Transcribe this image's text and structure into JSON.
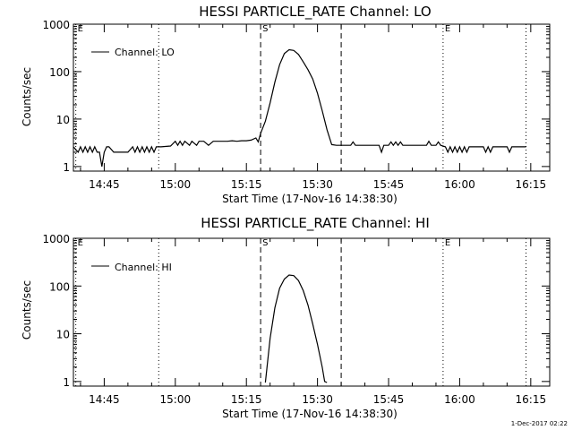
{
  "footer_date": "1-Dec-2017 02:22",
  "chart_data": [
    {
      "type": "line",
      "title": "HESSI PARTICLE_RATE Channel: LO",
      "xlabel": "Start Time (17-Nov-16 14:38:30)",
      "ylabel": "Counts/sec",
      "yscale": "log",
      "xlim": [
        "14:38:30",
        "16:19:00"
      ],
      "ylim": [
        0.8,
        1000
      ],
      "xticks": [
        "14:45",
        "15:00",
        "15:15",
        "15:30",
        "15:45",
        "16:00",
        "16:15"
      ],
      "yticks": [
        1,
        10,
        100,
        1000
      ],
      "ytick_labels": [
        "1",
        "10",
        "100",
        "1000"
      ],
      "legend": {
        "position": "top-left",
        "label": "Channel: LO"
      },
      "markers": [
        {
          "time": "14:39:00",
          "label": "E",
          "style": "dotted"
        },
        {
          "time": "14:56:30",
          "label": "",
          "style": "dotted"
        },
        {
          "time": "15:18:00",
          "label": "S",
          "style": "dashed"
        },
        {
          "time": "15:35:00",
          "label": "",
          "style": "dashed"
        },
        {
          "time": "15:56:30",
          "label": "E",
          "style": "dotted"
        },
        {
          "time": "16:14:00",
          "label": "",
          "style": "dotted"
        }
      ],
      "series": [
        {
          "name": "Channel: LO",
          "points": [
            [
              "14:38:30",
              2.6
            ],
            [
              "14:39:30",
              2.0
            ],
            [
              "14:40:00",
              2.6
            ],
            [
              "14:40:30",
              2.0
            ],
            [
              "14:41:00",
              2.6
            ],
            [
              "14:41:30",
              2.0
            ],
            [
              "14:42:00",
              2.6
            ],
            [
              "14:42:30",
              2.0
            ],
            [
              "14:43:00",
              2.6
            ],
            [
              "14:43:30",
              2.0
            ],
            [
              "14:44:00",
              2.0
            ],
            [
              "14:44:30",
              1.0
            ],
            [
              "14:45:00",
              2.0
            ],
            [
              "14:45:30",
              2.6
            ],
            [
              "14:46:00",
              2.6
            ],
            [
              "14:47:00",
              2.0
            ],
            [
              "14:48:00",
              2.0
            ],
            [
              "14:49:00",
              2.0
            ],
            [
              "14:50:00",
              2.0
            ],
            [
              "14:51:00",
              2.6
            ],
            [
              "14:51:30",
              2.0
            ],
            [
              "14:52:00",
              2.6
            ],
            [
              "14:52:30",
              2.0
            ],
            [
              "14:53:00",
              2.6
            ],
            [
              "14:53:30",
              2.0
            ],
            [
              "14:54:00",
              2.6
            ],
            [
              "14:54:30",
              2.0
            ],
            [
              "14:55:00",
              2.6
            ],
            [
              "14:55:30",
              2.0
            ],
            [
              "14:56:00",
              2.6
            ],
            [
              "14:57:00",
              2.6
            ],
            [
              "14:59:00",
              2.7
            ],
            [
              "15:00:00",
              3.4
            ],
            [
              "15:00:30",
              2.8
            ],
            [
              "15:01:00",
              3.4
            ],
            [
              "15:01:30",
              2.8
            ],
            [
              "15:02:00",
              3.4
            ],
            [
              "15:03:00",
              2.8
            ],
            [
              "15:03:30",
              3.4
            ],
            [
              "15:04:30",
              2.8
            ],
            [
              "15:05:00",
              3.4
            ],
            [
              "15:06:00",
              3.4
            ],
            [
              "15:07:00",
              2.8
            ],
            [
              "15:08:00",
              3.4
            ],
            [
              "15:09:00",
              3.4
            ],
            [
              "15:10:00",
              3.4
            ],
            [
              "15:11:00",
              3.4
            ],
            [
              "15:12:00",
              3.5
            ],
            [
              "15:13:00",
              3.4
            ],
            [
              "15:14:00",
              3.5
            ],
            [
              "15:15:00",
              3.5
            ],
            [
              "15:16:00",
              3.6
            ],
            [
              "15:17:00",
              4.0
            ],
            [
              "15:17:30",
              3.3
            ],
            [
              "15:18:00",
              5.0
            ],
            [
              "15:19:00",
              9
            ],
            [
              "15:20:00",
              22
            ],
            [
              "15:21:00",
              60
            ],
            [
              "15:22:00",
              140
            ],
            [
              "15:23:00",
              240
            ],
            [
              "15:24:00",
              290
            ],
            [
              "15:25:00",
              280
            ],
            [
              "15:26:00",
              230
            ],
            [
              "15:27:00",
              160
            ],
            [
              "15:28:00",
              110
            ],
            [
              "15:29:00",
              70
            ],
            [
              "15:30:00",
              35
            ],
            [
              "15:31:00",
              15
            ],
            [
              "15:32:00",
              6
            ],
            [
              "15:33:00",
              2.9
            ],
            [
              "15:34:00",
              2.8
            ],
            [
              "15:35:00",
              2.8
            ],
            [
              "15:36:00",
              2.8
            ],
            [
              "15:37:00",
              2.8
            ],
            [
              "15:37:30",
              3.3
            ],
            [
              "15:38:00",
              2.8
            ],
            [
              "15:40:00",
              2.8
            ],
            [
              "15:42:00",
              2.8
            ],
            [
              "15:43:00",
              2.8
            ],
            [
              "15:43:30",
              2.0
            ],
            [
              "15:44:00",
              2.8
            ],
            [
              "15:45:00",
              2.8
            ],
            [
              "15:45:30",
              3.3
            ],
            [
              "15:46:00",
              2.8
            ],
            [
              "15:46:30",
              3.3
            ],
            [
              "15:47:00",
              2.8
            ],
            [
              "15:47:30",
              3.3
            ],
            [
              "15:48:00",
              2.8
            ],
            [
              "15:50:00",
              2.8
            ],
            [
              "15:52:00",
              2.8
            ],
            [
              "15:53:00",
              2.8
            ],
            [
              "15:53:30",
              3.4
            ],
            [
              "15:54:00",
              2.8
            ],
            [
              "15:55:00",
              2.8
            ],
            [
              "15:55:30",
              3.3
            ],
            [
              "15:56:00",
              2.8
            ],
            [
              "15:57:00",
              2.6
            ],
            [
              "15:57:30",
              2.0
            ],
            [
              "15:58:00",
              2.6
            ],
            [
              "15:58:30",
              2.0
            ],
            [
              "15:59:00",
              2.6
            ],
            [
              "15:59:30",
              2.0
            ],
            [
              "16:00:00",
              2.6
            ],
            [
              "16:00:30",
              2.0
            ],
            [
              "16:01:00",
              2.6
            ],
            [
              "16:01:30",
              2.0
            ],
            [
              "16:02:00",
              2.6
            ],
            [
              "16:03:00",
              2.6
            ],
            [
              "16:04:00",
              2.6
            ],
            [
              "16:05:00",
              2.6
            ],
            [
              "16:05:30",
              2.0
            ],
            [
              "16:06:00",
              2.6
            ],
            [
              "16:06:30",
              2.0
            ],
            [
              "16:07:00",
              2.6
            ],
            [
              "16:08:00",
              2.6
            ],
            [
              "16:09:00",
              2.6
            ],
            [
              "16:10:00",
              2.6
            ],
            [
              "16:10:30",
              2.0
            ],
            [
              "16:11:00",
              2.6
            ],
            [
              "16:12:00",
              2.6
            ],
            [
              "16:13:00",
              2.6
            ],
            [
              "16:14:00",
              2.6
            ]
          ]
        }
      ]
    },
    {
      "type": "line",
      "title": "HESSI PARTICLE_RATE Channel: HI",
      "xlabel": "Start Time (17-Nov-16 14:38:30)",
      "ylabel": "Counts/sec",
      "yscale": "log",
      "xlim": [
        "14:38:30",
        "16:19:00"
      ],
      "ylim": [
        0.8,
        1000
      ],
      "xticks": [
        "14:45",
        "15:00",
        "15:15",
        "15:30",
        "15:45",
        "16:00",
        "16:15"
      ],
      "yticks": [
        1,
        10,
        100,
        1000
      ],
      "ytick_labels": [
        "1",
        "10",
        "100",
        "1000"
      ],
      "legend": {
        "position": "top-left",
        "label": "Channel: HI"
      },
      "markers": [
        {
          "time": "14:39:00",
          "label": "E",
          "style": "dotted"
        },
        {
          "time": "14:56:30",
          "label": "",
          "style": "dotted"
        },
        {
          "time": "15:18:00",
          "label": "S",
          "style": "dashed"
        },
        {
          "time": "15:35:00",
          "label": "",
          "style": "dashed"
        },
        {
          "time": "15:56:30",
          "label": "E",
          "style": "dotted"
        },
        {
          "time": "16:14:00",
          "label": "",
          "style": "dotted"
        }
      ],
      "series": [
        {
          "name": "Channel: HI",
          "points": [
            [
              "15:19:00",
              0.95
            ],
            [
              "15:20:00",
              8
            ],
            [
              "15:21:00",
              35
            ],
            [
              "15:22:00",
              90
            ],
            [
              "15:23:00",
              140
            ],
            [
              "15:24:00",
              170
            ],
            [
              "15:25:00",
              165
            ],
            [
              "15:26:00",
              130
            ],
            [
              "15:27:00",
              80
            ],
            [
              "15:28:00",
              40
            ],
            [
              "15:29:00",
              16
            ],
            [
              "15:30:00",
              6
            ],
            [
              "15:31:00",
              2
            ],
            [
              "15:31:30",
              1.0
            ],
            [
              "15:32:00",
              0.95
            ]
          ]
        }
      ]
    }
  ]
}
